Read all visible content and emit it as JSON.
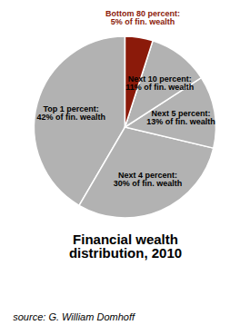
{
  "chart_data": {
    "type": "pie",
    "title": "Financial wealth\ndistribution, 2010",
    "source": "source: G. William Domhoff",
    "categories": [
      "Top 1 percent:\n42% of fin. wealth",
      "Next 4 percent:\n30% of fin. wealth",
      "Next 5 percent:\n13% of fin. wealth",
      "Next 10 percent:\n11% of fin. wealth",
      "Bottom 80 percent:\n5% of fin. wealth"
    ],
    "values": [
      42,
      30,
      13,
      11,
      5
    ],
    "colors": [
      "#b2b2b2",
      "#b2b2b2",
      "#b2b2b2",
      "#b2b2b2",
      "#8b1a0a"
    ],
    "label_colors": [
      "#000000",
      "#000000",
      "#000000",
      "#000000",
      "#8b1a0a"
    ]
  }
}
